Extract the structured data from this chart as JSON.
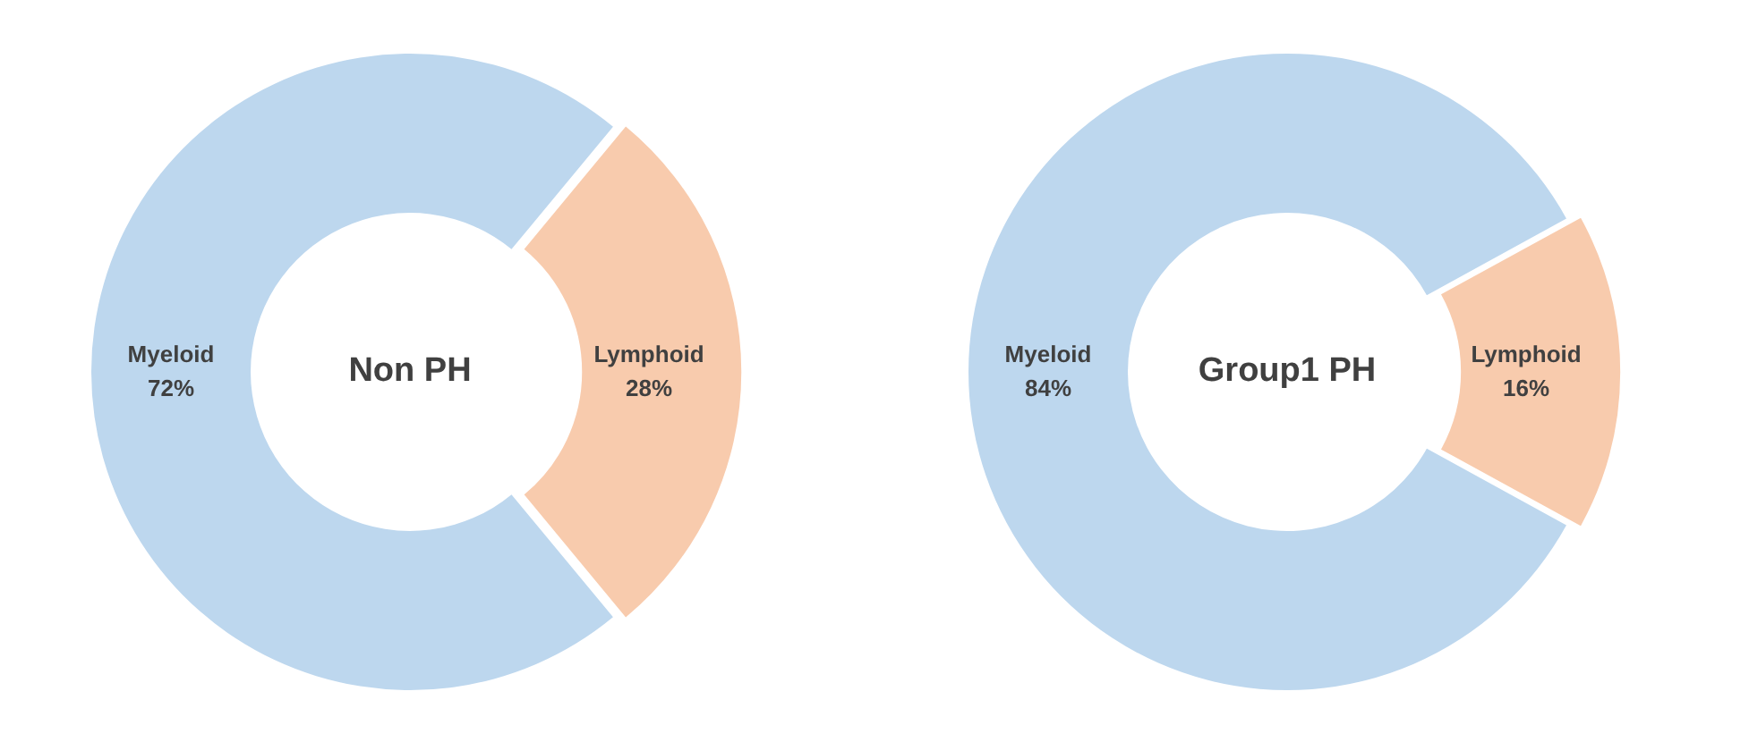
{
  "chart_data": [
    {
      "type": "donut",
      "title": "Non PH",
      "categories": [
        "Myeloid",
        "Lymphoid"
      ],
      "values": [
        72,
        28
      ],
      "value_labels": [
        "72%",
        "28%"
      ],
      "colors": [
        "#bdd7ee",
        "#f8cbad"
      ],
      "legend": false
    },
    {
      "type": "donut",
      "title": "Group1 PH",
      "categories": [
        "Myeloid",
        "Lymphoid"
      ],
      "values": [
        84,
        16
      ],
      "value_labels": [
        "84%",
        "16%"
      ],
      "colors": [
        "#bdd7ee",
        "#f8cbad"
      ],
      "legend": false
    }
  ]
}
